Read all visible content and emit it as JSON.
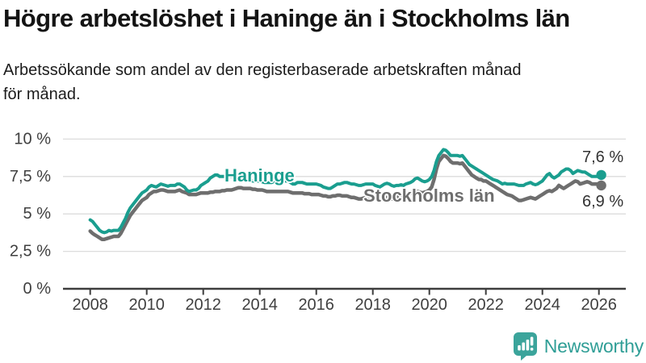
{
  "header": {
    "title": "Högre arbetslöshet i Haninge än i Stockholms län",
    "subtitle": "Arbetssökande som andel av den registerbaserade arbetskraften månad\nför månad."
  },
  "chart_data": {
    "type": "line",
    "title": "Högre arbetslöshet i Haninge än i Stockholms län",
    "subtitle": "Arbetssökande som andel av den registerbaserade arbetskraften månad för månad.",
    "x_unit": "month",
    "x_start_year": 2008,
    "x_end_label_month": "2026-02",
    "xlim": [
      2007.05,
      2026.95
    ],
    "ylim": [
      0,
      10
    ],
    "grid": "horizontal",
    "legend": "inline-labels",
    "y_ticks": [
      {
        "label": "10 %",
        "value": 10
      },
      {
        "label": "7,5 %",
        "value": 7.5
      },
      {
        "label": "5 %",
        "value": 5
      },
      {
        "label": "2,5 %",
        "value": 2.5
      },
      {
        "label": "0 %",
        "value": 0
      }
    ],
    "x_ticks": [
      "2008",
      "2010",
      "2012",
      "2014",
      "2016",
      "2018",
      "2020",
      "2022",
      "2024",
      "2026"
    ],
    "series": [
      {
        "name": "Haninge",
        "color": "#1a9e8f",
        "end_label": "7,6 %",
        "end_value": 7.6,
        "values": [
          4.6,
          4.5,
          4.3,
          4.1,
          3.9,
          3.8,
          3.75,
          3.8,
          3.9,
          3.85,
          3.9,
          3.9,
          3.9,
          4.1,
          4.4,
          4.7,
          5.1,
          5.4,
          5.6,
          5.8,
          6.0,
          6.2,
          6.4,
          6.5,
          6.6,
          6.8,
          6.9,
          6.85,
          6.8,
          6.9,
          7.0,
          6.95,
          6.9,
          6.85,
          6.9,
          6.9,
          6.9,
          7.0,
          7.0,
          6.9,
          6.8,
          6.6,
          6.5,
          6.55,
          6.6,
          6.6,
          6.7,
          6.9,
          7.0,
          7.1,
          7.2,
          7.4,
          7.5,
          7.6,
          7.6,
          7.5,
          7.5,
          7.5,
          7.5,
          7.5,
          7.5,
          7.5,
          7.45,
          7.4,
          7.4,
          7.35,
          7.3,
          7.3,
          7.25,
          7.2,
          7.2,
          7.2,
          7.2,
          7.15,
          7.1,
          7.1,
          7.1,
          7.1,
          7.15,
          7.2,
          7.2,
          7.2,
          7.2,
          7.2,
          7.2,
          7.1,
          7.0,
          7.0,
          7.1,
          7.1,
          7.1,
          7.05,
          7.0,
          7.0,
          7.0,
          7.0,
          7.0,
          6.95,
          6.9,
          6.8,
          6.75,
          6.7,
          6.7,
          6.8,
          6.9,
          7.0,
          7.0,
          7.05,
          7.1,
          7.1,
          7.05,
          7.0,
          7.0,
          6.95,
          6.9,
          6.9,
          6.95,
          7.0,
          7.0,
          7.0,
          7.0,
          6.9,
          6.85,
          6.8,
          6.9,
          7.0,
          7.05,
          7.0,
          6.9,
          6.85,
          6.9,
          6.9,
          6.95,
          6.9,
          7.0,
          7.05,
          7.1,
          7.2,
          7.35,
          7.4,
          7.3,
          7.2,
          7.15,
          7.2,
          7.3,
          7.5,
          7.9,
          8.5,
          8.9,
          9.1,
          9.3,
          9.25,
          9.1,
          8.9,
          8.9,
          8.9,
          8.9,
          8.85,
          8.9,
          8.7,
          8.5,
          8.3,
          8.2,
          8.1,
          8.0,
          7.9,
          7.8,
          7.7,
          7.6,
          7.5,
          7.4,
          7.3,
          7.25,
          7.2,
          7.1,
          7.0,
          7.05,
          7.0,
          7.0,
          7.0,
          7.0,
          6.95,
          6.9,
          6.9,
          6.9,
          7.0,
          7.05,
          7.1,
          7.0,
          6.95,
          7.0,
          7.1,
          7.2,
          7.4,
          7.6,
          7.7,
          7.5,
          7.4,
          7.5,
          7.6,
          7.8,
          7.9,
          8.0,
          8.0,
          7.9,
          7.7,
          7.8,
          7.9,
          7.85,
          7.8,
          7.8,
          7.7,
          7.6,
          7.5,
          7.5,
          7.5,
          7.5,
          7.6
        ]
      },
      {
        "name": "Stockholms län",
        "color": "#6e6e6e",
        "end_label": "6,9 %",
        "end_value": 6.9,
        "values": [
          3.85,
          3.7,
          3.6,
          3.5,
          3.4,
          3.3,
          3.3,
          3.35,
          3.4,
          3.45,
          3.5,
          3.5,
          3.5,
          3.7,
          4.0,
          4.3,
          4.6,
          4.9,
          5.1,
          5.3,
          5.5,
          5.7,
          5.9,
          6.0,
          6.1,
          6.3,
          6.4,
          6.5,
          6.5,
          6.55,
          6.6,
          6.6,
          6.55,
          6.5,
          6.5,
          6.5,
          6.5,
          6.55,
          6.6,
          6.5,
          6.45,
          6.4,
          6.3,
          6.3,
          6.3,
          6.3,
          6.35,
          6.4,
          6.4,
          6.4,
          6.4,
          6.45,
          6.45,
          6.5,
          6.5,
          6.5,
          6.55,
          6.55,
          6.6,
          6.6,
          6.6,
          6.65,
          6.7,
          6.75,
          6.75,
          6.7,
          6.7,
          6.7,
          6.7,
          6.65,
          6.65,
          6.6,
          6.6,
          6.6,
          6.55,
          6.5,
          6.5,
          6.5,
          6.5,
          6.5,
          6.5,
          6.5,
          6.5,
          6.5,
          6.5,
          6.45,
          6.4,
          6.4,
          6.4,
          6.4,
          6.4,
          6.35,
          6.35,
          6.35,
          6.3,
          6.3,
          6.3,
          6.3,
          6.25,
          6.2,
          6.2,
          6.15,
          6.15,
          6.2,
          6.2,
          6.25,
          6.25,
          6.2,
          6.2,
          6.2,
          6.15,
          6.1,
          6.1,
          6.05,
          6.0,
          6.0,
          6.05,
          6.1,
          6.1,
          6.1,
          6.1,
          6.05,
          6.0,
          6.0,
          6.0,
          6.05,
          6.1,
          6.05,
          6.0,
          6.0,
          6.1,
          6.15,
          6.2,
          6.2,
          6.3,
          6.35,
          6.4,
          6.45,
          6.5,
          6.5,
          6.45,
          6.4,
          6.45,
          6.5,
          6.6,
          6.8,
          7.3,
          8.0,
          8.5,
          8.7,
          8.9,
          8.85,
          8.7,
          8.5,
          8.4,
          8.4,
          8.4,
          8.35,
          8.4,
          8.2,
          8.0,
          7.8,
          7.6,
          7.5,
          7.4,
          7.3,
          7.3,
          7.2,
          7.2,
          7.1,
          7.0,
          6.9,
          6.8,
          6.7,
          6.6,
          6.5,
          6.4,
          6.3,
          6.25,
          6.2,
          6.1,
          6.0,
          5.9,
          5.9,
          5.95,
          6.0,
          6.05,
          6.1,
          6.05,
          6.0,
          6.1,
          6.2,
          6.3,
          6.4,
          6.5,
          6.55,
          6.5,
          6.6,
          6.7,
          6.9,
          6.8,
          6.7,
          6.8,
          6.9,
          7.0,
          7.1,
          7.2,
          7.15,
          7.0,
          7.05,
          7.1,
          7.15,
          7.1,
          7.0,
          7.0,
          7.0,
          7.0,
          6.9
        ]
      }
    ]
  },
  "colors": {
    "accent_teal": "#1a9e8f",
    "line_gray": "#6e6e6e",
    "axis_text": "#3f3f3f",
    "gridline": "#dcdcdc",
    "axis_line": "#3d3d3d",
    "logo_teal": "#3ba49b",
    "brand_text_teal": "#2f9e96"
  },
  "footer": {
    "brand": "Newsworthy"
  }
}
